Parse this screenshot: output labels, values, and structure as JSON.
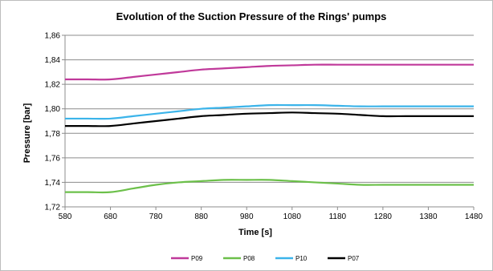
{
  "chart_data": {
    "type": "line",
    "title": "Evolution of the Suction Pressure of the Rings' pumps",
    "xlabel": "Time [s]",
    "ylabel": "Pressure [bar]",
    "xlim": [
      580,
      1480
    ],
    "ylim": [
      1.72,
      1.86
    ],
    "x_ticks": [
      580,
      680,
      780,
      880,
      980,
      1080,
      1180,
      1280,
      1380,
      1480
    ],
    "y_ticks": [
      1.72,
      1.74,
      1.76,
      1.78,
      1.8,
      1.82,
      1.84,
      1.86
    ],
    "x_tick_labels": [
      "580",
      "680",
      "780",
      "880",
      "980",
      "1080",
      "1180",
      "1280",
      "1380",
      "1480"
    ],
    "y_tick_labels": [
      "1,72",
      "1,74",
      "1,76",
      "1,78",
      "1,80",
      "1,82",
      "1,84",
      "1,86"
    ],
    "grid": "horizontal",
    "legend_position": "bottom",
    "x": [
      580,
      630,
      680,
      730,
      780,
      830,
      880,
      930,
      980,
      1030,
      1080,
      1130,
      1180,
      1230,
      1280,
      1330,
      1380,
      1430,
      1480
    ],
    "series": [
      {
        "name": "P09",
        "color": "#c0399a",
        "values": [
          1.824,
          1.824,
          1.824,
          1.826,
          1.828,
          1.83,
          1.832,
          1.833,
          1.834,
          1.835,
          1.8355,
          1.836,
          1.836,
          1.836,
          1.836,
          1.836,
          1.836,
          1.836,
          1.836
        ]
      },
      {
        "name": "P08",
        "color": "#6cc04a",
        "values": [
          1.732,
          1.732,
          1.732,
          1.735,
          1.738,
          1.74,
          1.741,
          1.742,
          1.742,
          1.742,
          1.741,
          1.74,
          1.739,
          1.738,
          1.738,
          1.738,
          1.738,
          1.738,
          1.738
        ]
      },
      {
        "name": "P10",
        "color": "#3bb4ea",
        "values": [
          1.792,
          1.792,
          1.792,
          1.794,
          1.796,
          1.798,
          1.8,
          1.801,
          1.802,
          1.803,
          1.803,
          1.803,
          1.8025,
          1.802,
          1.802,
          1.802,
          1.802,
          1.802,
          1.802
        ]
      },
      {
        "name": "P07",
        "color": "#000000",
        "values": [
          1.786,
          1.786,
          1.786,
          1.788,
          1.79,
          1.792,
          1.794,
          1.795,
          1.796,
          1.7965,
          1.797,
          1.7965,
          1.796,
          1.795,
          1.794,
          1.794,
          1.794,
          1.794,
          1.794
        ]
      }
    ]
  }
}
